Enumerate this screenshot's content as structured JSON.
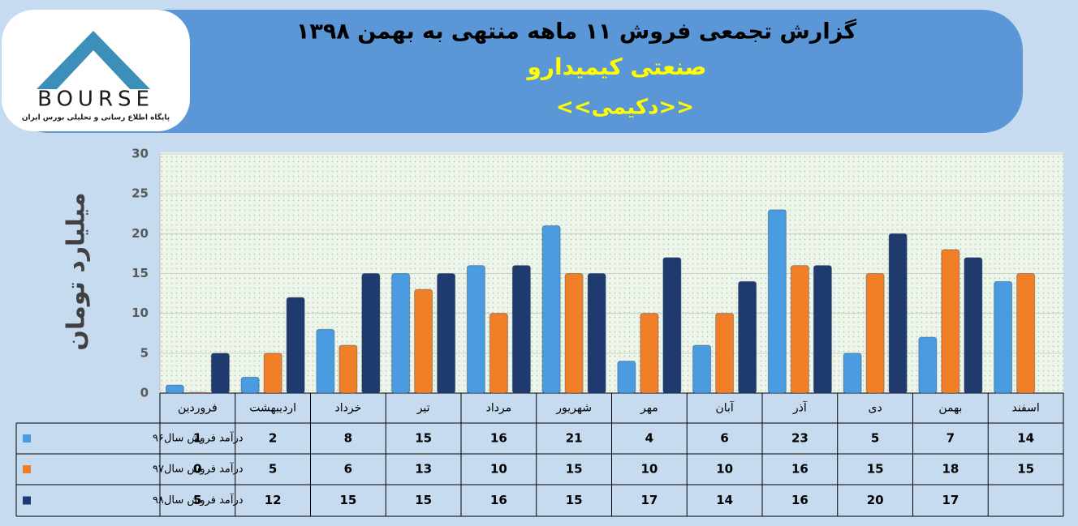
{
  "chart_data": {
    "type": "bar",
    "title": "گزارش تجمعی فروش  ۱۱ ماهه منتهی به بهمن ۱۳۹۸",
    "subtitle": "صنعتی کیمیدارو",
    "symbol": "<<دکیمی>>",
    "logo_text": "BOURSE",
    "logo_caption": "پایگاه اطلاع رسانی و تحلیلی بورس ایران",
    "y_axis_label": "میلیارد تومان",
    "categories": [
      "فروردین",
      "اردیبهشت",
      "خرداد",
      "تیر",
      "مرداد",
      "شهریور",
      "مهر",
      "آبان",
      "آذر",
      "دی",
      "بهمن",
      "اسفند"
    ],
    "series": [
      {
        "name": "درآمد فروش سال۹۶",
        "color": "#4a9be0",
        "values": [
          1,
          2,
          8,
          15,
          16,
          21,
          4,
          6,
          23,
          5,
          7,
          14
        ]
      },
      {
        "name": "درآمد فروش سال۹۷",
        "color": "#f07f28",
        "values": [
          0,
          5,
          6,
          13,
          10,
          15,
          10,
          10,
          16,
          15,
          18,
          15
        ]
      },
      {
        "name": "درآمد فروش سال۹۸",
        "color": "#1f3a6e",
        "values": [
          5,
          12,
          15,
          15,
          16,
          15,
          17,
          14,
          16,
          20,
          17,
          null
        ]
      }
    ],
    "ylim": [
      0,
      30
    ],
    "yticks": [
      0,
      5,
      10,
      15,
      20,
      25,
      30
    ],
    "grid": true
  }
}
